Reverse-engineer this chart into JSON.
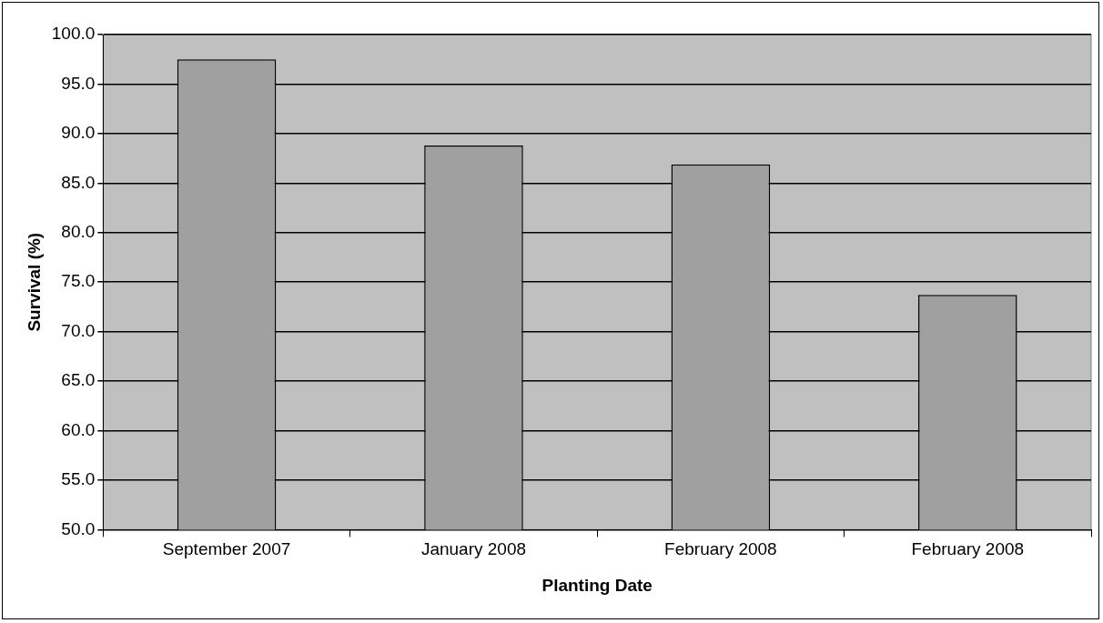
{
  "chart_data": {
    "type": "bar",
    "xlabel": "Planting Date",
    "ylabel": "Survival (%)",
    "categories": [
      "September 2007",
      "January 2008",
      "February 2008",
      "February 2008"
    ],
    "values": [
      97.5,
      88.8,
      86.9,
      73.7
    ],
    "color": "#a0a0a0",
    "ylim": [
      50,
      100
    ],
    "yticks": [
      {
        "value": 50,
        "label": "50.0"
      },
      {
        "value": 55,
        "label": "55.0"
      },
      {
        "value": 60,
        "label": "60.0"
      },
      {
        "value": 65,
        "label": "65.0"
      },
      {
        "value": 70,
        "label": "70.0"
      },
      {
        "value": 75,
        "label": "75.0"
      },
      {
        "value": 80,
        "label": "80.0"
      },
      {
        "value": 85,
        "label": "85.0"
      },
      {
        "value": 90,
        "label": "90.0"
      },
      {
        "value": 95,
        "label": "95.0"
      },
      {
        "value": 100,
        "label": "100.0"
      }
    ],
    "grid": "y",
    "legend": false
  }
}
